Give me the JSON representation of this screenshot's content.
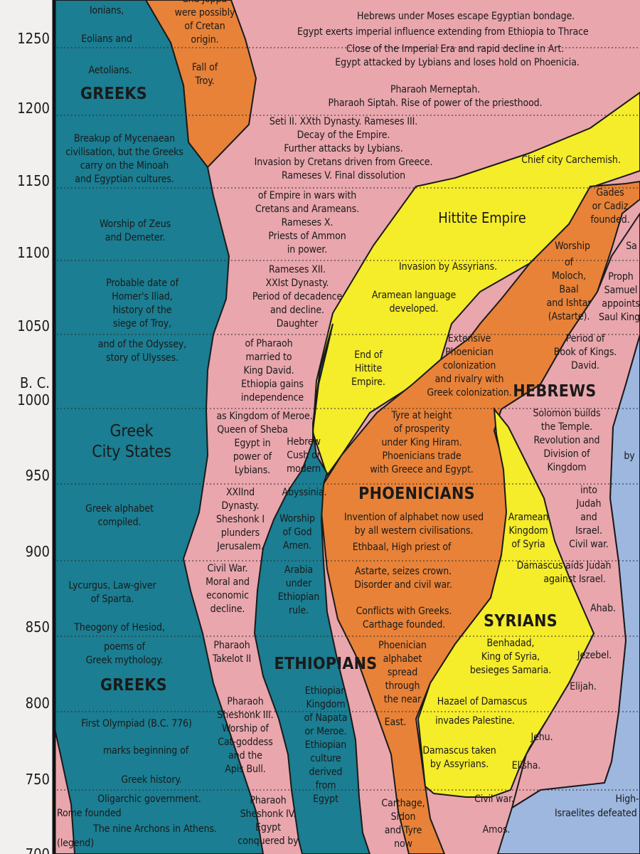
{
  "years": [
    "1250",
    "1200",
    "1150",
    "1100",
    "1050",
    "1000",
    "950",
    "900",
    "850",
    "800",
    "750",
    "700"
  ],
  "bc_label": "B. C.",
  "colors": {
    "greeks": "#1b7e92",
    "egypt": "#e9a6ad",
    "cretan": "#e88238",
    "hittite": "#f5ec2a",
    "phoenicians": "#e88238",
    "hebrews": "#e9a6ad",
    "syrians": "#f5ec2a",
    "ethiopians": "#1b7e92",
    "right": "#9db7df"
  },
  "greeks": {
    "ionians": "Ionians,",
    "eolians": "Eolians and",
    "aetolians": "Aetolians.",
    "title_top": "GREEKS",
    "breakup": [
      "Breakup of Mycenaean",
      "civilisation, but the Greeks",
      "carry on the Minoah",
      "and Egyptian cultures."
    ],
    "zeus": [
      "Worship of Zeus",
      "and Demeter."
    ],
    "homer": [
      "Probable date of",
      "Homer's Iliad,",
      "history of the",
      "siege of Troy,"
    ],
    "odyssey": [
      "and of the Odyssey,",
      "story of Ulysses."
    ],
    "city_states": [
      "Greek",
      "City States"
    ],
    "alphabet": [
      "Greek alphabet",
      "compiled."
    ],
    "lycurgus": [
      "Lycurgus, Law-giver",
      "of Sparta."
    ],
    "theogony": "Theogony of Hesiod,",
    "poems": [
      "poems of",
      "Greek mythology."
    ],
    "title_bottom": "GREEKS",
    "olympiad": "First Olympiad (B.C. 776)",
    "marks": "marks beginning of",
    "history": "Greek history.",
    "oligarchic": "Oligarchic government.",
    "rome": "Rome founded",
    "archons": "The nine Archons in Athens.",
    "legend": "(legend)"
  },
  "cretan": {
    "top": [
      "and Joppa",
      "were possibly",
      "of Cretan",
      "origin."
    ],
    "fall": [
      "Fall of",
      "Troy."
    ]
  },
  "egypt": {
    "moses": "Hebrews under Moses escape Egyptian bondage.",
    "imperial": "Egypt exerts imperial influence extending from Ethiopia to Thrace",
    "close": "Close of the Imperial Era and rapid decline in Art.",
    "attacked": "Egypt attacked by Lybians and loses hold on Phoenicia.",
    "merneptah": "Pharaoh Merneptah.",
    "siptah": "Pharaoh Siptah. Rise of power of the priesthood.",
    "seti": [
      "Seti II. XXth Dynasty. Rameses III.",
      "Decay of the Empire.",
      "Further attacks by Lybians.",
      "Invasion by Cretans driven from Greece.",
      "Rameses V. Final dissolution"
    ],
    "empire_wars": [
      "of Empire in wars with",
      "Cretans and Arameans.",
      "Rameses X.",
      "Priests of Ammon",
      "in power."
    ],
    "rameses12": [
      "Rameses XII.",
      "XXIst Dynasty.",
      "Period of decadence",
      "and decline.",
      "Daughter"
    ],
    "daughter": [
      "of Pharaoh",
      "married to",
      "King David."
    ],
    "ethiopia": [
      "Ethiopia gains",
      "independence"
    ],
    "meroe": [
      "as Kingdom of Meroe.",
      "Queen of Sheba",
      "Egypt in",
      "power of",
      "Lybians."
    ],
    "xxii": [
      "XXIInd",
      "Dynasty.",
      "Sheshonk I",
      "plunders",
      "Jerusalem."
    ],
    "civilwar": [
      "Civil War.",
      "Moral and",
      "economic",
      "decline."
    ],
    "takelot": [
      "Pharaoh",
      "Takelot II"
    ],
    "sheshonk3": [
      "Pharaoh",
      "Sheshonk III.",
      "Worship of",
      "Cat-goddess",
      "and the",
      "Apis Bull."
    ],
    "sheshonk4": [
      "Pharaoh",
      "Sheshonk IV.",
      "Egypt",
      "conquered by"
    ]
  },
  "ethiopians": {
    "hebrew": [
      "Hebrew",
      "Cush or",
      "modern"
    ],
    "abyssinia": "Abyssinia.",
    "worship": [
      "Worship",
      "of God",
      "Amen."
    ],
    "arabia": [
      "Arabia",
      "under",
      "Ethiopian",
      "rule."
    ],
    "title": "ETHIOPIANS",
    "kingdom": [
      "Ethiopian",
      "Kingdom",
      "of Napata",
      "or Meroe.",
      "Ethiopian",
      "culture",
      "derived",
      "from",
      "Egypt"
    ]
  },
  "hittite": {
    "carchemish": "Chief city Carchemish.",
    "title": "Hittite Empire",
    "invasion": "Invasion by Assyrians.",
    "aramean": [
      "Aramean language",
      "developed."
    ],
    "end": [
      "End of",
      "Hittite",
      "Empire."
    ]
  },
  "phoenicians": {
    "gades": [
      "Gades",
      "or Cadiz",
      "founded."
    ],
    "worship": [
      "Worship",
      "of",
      "Moloch,",
      "Baal",
      "and Ishtar",
      "(Astarte)."
    ],
    "extensive": [
      "Extensive",
      "Phoenician",
      "colonization",
      "and rivalry with",
      "Greek colonization."
    ],
    "tyre": [
      "Tyre at height",
      "of prosperity",
      "under King Hiram.",
      "Phoenicians trade",
      "with Greece and Egypt."
    ],
    "title": "PHOENICIANS",
    "invention": [
      "Invention of alphabet now used",
      "by all western civilisations."
    ],
    "ethbaal": "Ethbaal, High priest of",
    "astarte": [
      "Astarte, seizes crown.",
      "Disorder and civil war."
    ],
    "conflicts": [
      "Conflicts with Greeks.",
      "Carthage founded."
    ],
    "alphabet": [
      "Phoenician",
      "alphabet",
      "spread",
      "through",
      "the near"
    ],
    "east": "East.",
    "carthage": [
      "Carthage,",
      "Sidon",
      "and Tyre",
      "now"
    ]
  },
  "hebrews": {
    "sa": "Sa",
    "prophet": [
      "Proph",
      "Samuel",
      "appoints",
      "Saul King."
    ],
    "kings": [
      "Period of",
      "Book of Kings.",
      "David."
    ],
    "title": "HEBREWS",
    "solomon": [
      "Solomon builds",
      "the Temple.",
      "Revolution and",
      "Division of",
      "Kingdom"
    ],
    "judah": [
      "into",
      "Judah",
      "and",
      "Israel.",
      "Civil war."
    ],
    "by": "by",
    "damascus_aids": [
      "Damascus aids Judah",
      "against Israel."
    ],
    "ahab": "Ahab.",
    "jezebel": "Jezebel.",
    "elijah": "Elijah.",
    "jehu": "Jehu.",
    "elisha": "Elisha.",
    "civilwar": "Civil war.",
    "amos": "Amos.",
    "high": "High-",
    "israelites": "Israelites defeated"
  },
  "syrians": {
    "aramean": [
      "Aramean",
      "Kingdom",
      "of Syria"
    ],
    "title": "SYRIANS",
    "benhadad": [
      "Benhadad,",
      "King of Syria,",
      "besieges Samaria."
    ],
    "hazael": "Hazael of Damascus",
    "invades": "invades Palestine.",
    "taken": [
      "Damascus taken",
      "by Assyrians."
    ]
  }
}
